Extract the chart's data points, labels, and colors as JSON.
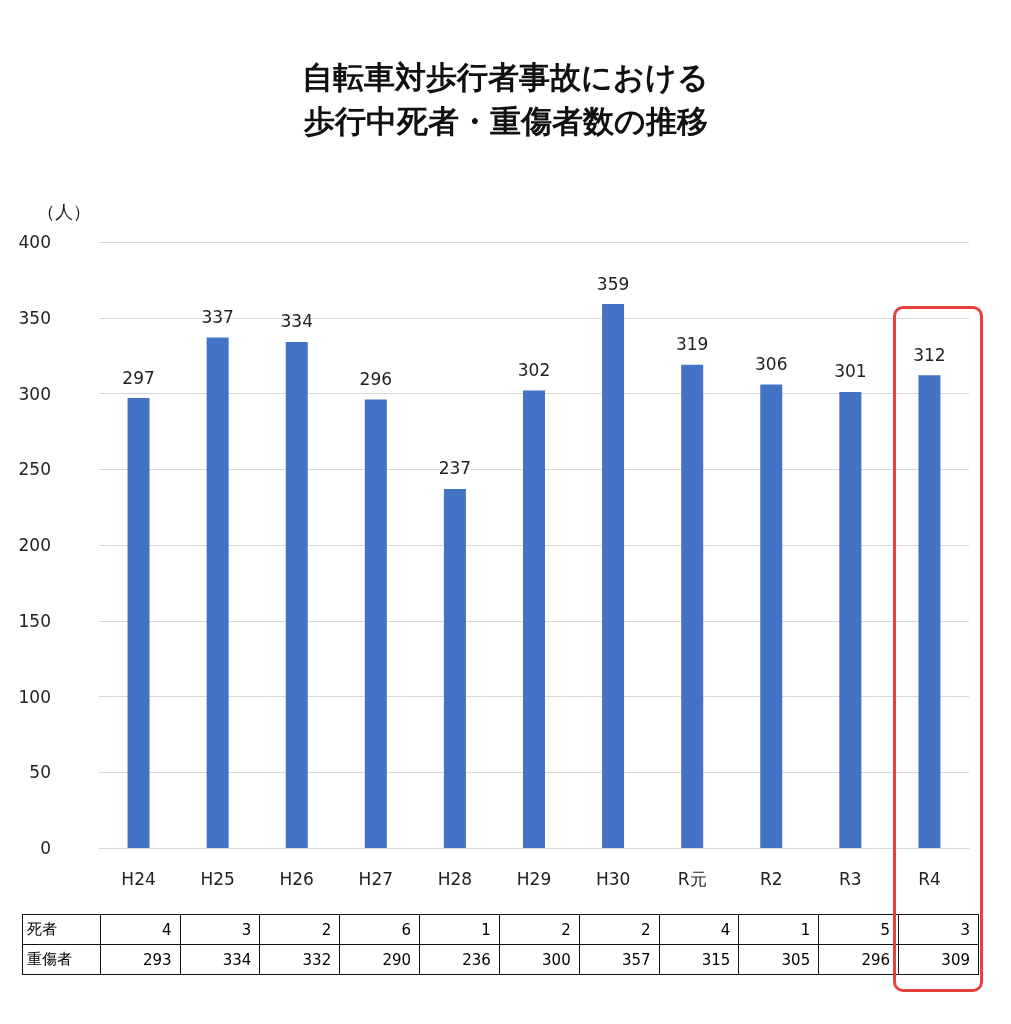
{
  "chart_data": [
    {
      "type": "bar",
      "title": "自転車対歩行者事故における歩行中死者・重傷者数の推移",
      "ylabel": "（人）",
      "categories": [
        "H24",
        "H25",
        "H26",
        "H27",
        "H28",
        "H29",
        "H30",
        "R元",
        "R2",
        "R3",
        "R4"
      ],
      "values": [
        297,
        337,
        334,
        296,
        237,
        302,
        359,
        319,
        306,
        301,
        312
      ],
      "color": "#4472c4",
      "data_labels": true,
      "ylim": [
        0,
        400
      ],
      "yticks": [
        0,
        50,
        100,
        150,
        200,
        250,
        300,
        350,
        400
      ],
      "grid": "y"
    },
    {
      "type": "heatmap",
      "data_labels": true,
      "categories": [
        null,
        null,
        null,
        null,
        null,
        null,
        null,
        null,
        null,
        null,
        null
      ],
      "y_categories": [
        "死者",
        "重傷者"
      ],
      "cells": [
        [
          4,
          3,
          2,
          6,
          1,
          2,
          2,
          4,
          1,
          5,
          3
        ],
        [
          293,
          334,
          332,
          290,
          236,
          300,
          357,
          315,
          305,
          296,
          309
        ]
      ]
    }
  ]
}
